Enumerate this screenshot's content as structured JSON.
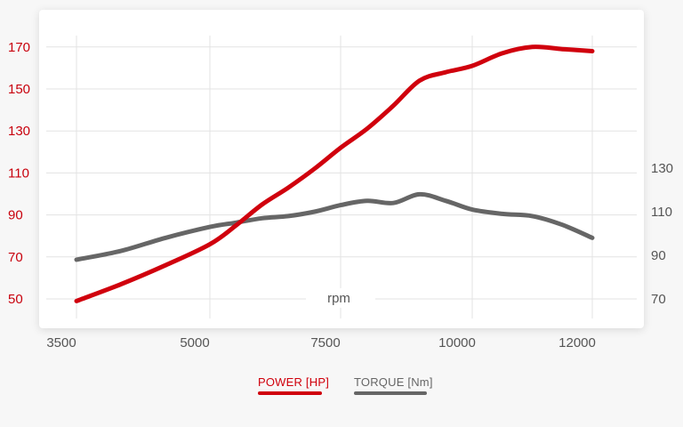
{
  "colors": {
    "power": "#d0000c",
    "torque": "#666666",
    "grid": "#e3e3e3",
    "card": "#ffffff"
  },
  "chart_data": {
    "type": "line",
    "xlabel": "rpm",
    "x_ticks": [
      3500,
      5000,
      7500,
      10000,
      12000
    ],
    "xlim": [
      3500,
      12000
    ],
    "y_left": {
      "ticks": [
        50,
        70,
        90,
        110,
        130,
        150,
        170
      ]
    },
    "y_right": {
      "ticks": [
        70,
        90,
        110,
        130
      ]
    },
    "grid": true,
    "legend_position": "bottom-center",
    "series": [
      {
        "name": "POWER [HP]",
        "axis": "left",
        "color": "#d0000c",
        "x": [
          3500,
          4000,
          4500,
          5000,
          5500,
          6000,
          6500,
          7000,
          7500,
          8000,
          8500,
          9000,
          9500,
          10000,
          10500,
          11000,
          11500,
          12000
        ],
        "y": [
          49,
          57,
          66,
          76,
          85,
          95,
          103,
          112,
          122,
          131,
          142,
          154,
          158,
          161,
          167,
          170,
          169,
          168
        ]
      },
      {
        "name": "TORQUE [Nm]",
        "axis": "right",
        "color": "#666666",
        "x": [
          3500,
          4000,
          4500,
          5000,
          5500,
          6000,
          6500,
          7000,
          7500,
          8000,
          8500,
          9000,
          9500,
          10000,
          10500,
          11000,
          11500,
          12000
        ],
        "y": [
          88,
          92,
          98,
          103,
          105,
          107,
          108,
          110,
          113,
          115,
          114,
          118,
          115,
          111,
          109,
          108,
          104,
          98
        ]
      }
    ]
  },
  "legend": {
    "power_label": "POWER [HP]",
    "torque_label": "TORQUE [Nm]"
  }
}
